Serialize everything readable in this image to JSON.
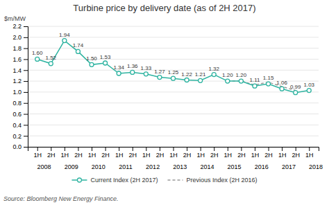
{
  "chart_data": {
    "type": "line",
    "title": "Turbine price by delivery date (as of 2H 2017)",
    "y_label": "$m/MW",
    "source": "Source: Bloomberg New Energy Finance.",
    "categories": [
      "1H",
      "2H",
      "1H",
      "2H",
      "1H",
      "2H",
      "1H",
      "2H",
      "1H",
      "2H",
      "1H",
      "2H",
      "1H",
      "2H",
      "1H",
      "2H",
      "1H",
      "2H",
      "1H",
      "2H",
      "1H"
    ],
    "category_groups": [
      "2008",
      "2009",
      "2010",
      "2011",
      "2012",
      "2013",
      "2014",
      "2015",
      "2016",
      "2017",
      "2018"
    ],
    "series": [
      {
        "name": "Current Index (2H 2017)",
        "color": "#2db3a0",
        "marker": "circle",
        "line_style": "solid",
        "values": [
          1.6,
          1.52,
          1.94,
          1.74,
          1.5,
          1.53,
          1.34,
          1.36,
          1.33,
          1.27,
          1.25,
          1.22,
          1.21,
          1.32,
          1.2,
          1.2,
          1.11,
          1.15,
          1.06,
          0.99,
          1.03
        ],
        "value_labels": [
          "1.60",
          "1.52",
          "1.94",
          "1.74",
          "1.50",
          "1.53",
          "1.34",
          "1.36",
          "1.33",
          "1.27",
          "1.25",
          "1.22",
          "1.21",
          "1.32",
          "1.20",
          "1.20",
          "1.11",
          "1.15",
          "1.06",
          "0.99",
          "1.03"
        ]
      },
      {
        "name": "Previous Index (2H 2016)",
        "color": "#999999",
        "line_style": "dashed",
        "values": [
          null,
          null,
          null,
          null,
          null,
          null,
          null,
          null,
          null,
          null,
          null,
          null,
          null,
          null,
          1.2,
          1.2,
          1.13,
          1.18,
          1.1,
          1.03,
          null
        ]
      }
    ],
    "ylim": [
      0.0,
      2.2
    ],
    "yticks": [
      {
        "value": 0.0,
        "label": "0.0"
      },
      0.2,
      0.4,
      0.6,
      0.8,
      {
        "value": 1.0,
        "label": "1.0"
      },
      1.2,
      1.4,
      1.6,
      1.8,
      {
        "value": 2.0,
        "label": "2.0"
      },
      2.2
    ],
    "grid": true,
    "legend": "bottom",
    "data_labels": true
  }
}
